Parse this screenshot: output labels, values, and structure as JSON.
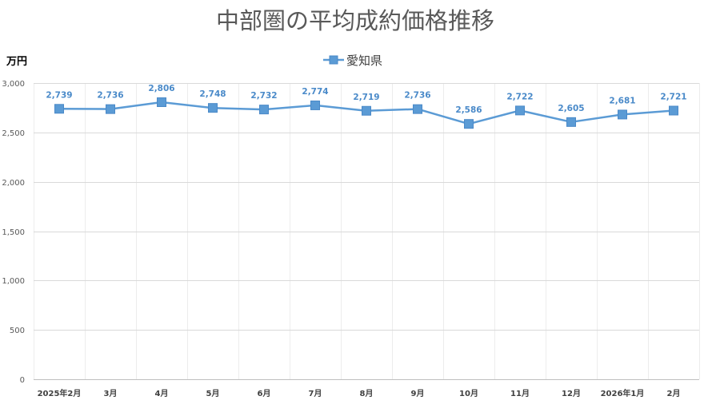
{
  "chart_data": {
    "type": "line",
    "title": "中部圏の平均成約価格推移",
    "ylabel": "万円",
    "xlabel": "",
    "categories": [
      "2025年2月",
      "3月",
      "4月",
      "5月",
      "6月",
      "7月",
      "8月",
      "9月",
      "10月",
      "11月",
      "12月",
      "2026年1月",
      "2月"
    ],
    "series": [
      {
        "name": "愛知県",
        "values": [
          2739,
          2736,
          2806,
          2748,
          2732,
          2774,
          2719,
          2736,
          2586,
          2722,
          2605,
          2681,
          2721
        ],
        "color": "#5b9bd5",
        "marker": "square"
      }
    ],
    "ylim": [
      0,
      3000
    ],
    "yticks": [
      0,
      500,
      1000,
      1500,
      2000,
      2500,
      3000
    ],
    "grid": true,
    "legend": "top-center",
    "data_labels": true,
    "colors": {
      "data_label": "#4a8ac9",
      "marker_edge": "#4a89c8",
      "gridline": "#d9d9d9",
      "vertical_gridline": "#ececec",
      "axis": "#bfbfbf"
    }
  }
}
